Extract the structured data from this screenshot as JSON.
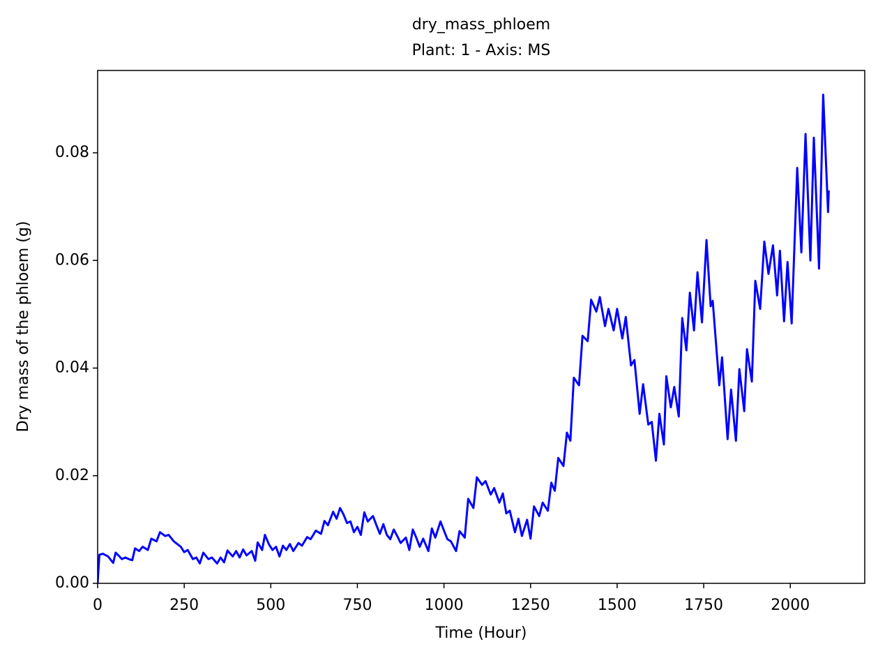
{
  "chart_data": {
    "type": "line",
    "title": "dry_mass_phloem",
    "subtitle": "Plant: 1 - Axis: MS",
    "xlabel": "Time (Hour)",
    "ylabel": "Dry mass of the phloem (g)",
    "xlim": [
      0,
      2215
    ],
    "ylim": [
      0,
      0.0953
    ],
    "xticks": [
      0,
      250,
      500,
      750,
      1000,
      1250,
      1500,
      1750,
      2000
    ],
    "yticks": [
      {
        "value": 0,
        "label": "0.00"
      },
      {
        "value": 0.02,
        "label": "0.02"
      },
      {
        "value": 0.04,
        "label": "0.04"
      },
      {
        "value": 0.06,
        "label": "0.06"
      },
      {
        "value": 0.08,
        "label": "0.08"
      }
    ],
    "grid": false,
    "series": [
      {
        "color": "#0000ff",
        "x": [
          0,
          5,
          15,
          30,
          45,
          52,
          60,
          70,
          80,
          90,
          100,
          108,
          120,
          130,
          145,
          155,
          170,
          180,
          195,
          205,
          220,
          240,
          250,
          260,
          275,
          285,
          295,
          305,
          320,
          330,
          345,
          355,
          365,
          375,
          390,
          400,
          410,
          420,
          430,
          445,
          455,
          462,
          475,
          483,
          495,
          505,
          515,
          525,
          535,
          545,
          555,
          565,
          580,
          590,
          605,
          615,
          630,
          645,
          655,
          665,
          680,
          690,
          700,
          710,
          720,
          730,
          740,
          750,
          760,
          770,
          780,
          795,
          805,
          815,
          825,
          835,
          845,
          855,
          865,
          875,
          890,
          900,
          910,
          920,
          930,
          940,
          955,
          965,
          975,
          990,
          1000,
          1010,
          1020,
          1035,
          1045,
          1060,
          1070,
          1085,
          1095,
          1110,
          1120,
          1135,
          1145,
          1160,
          1170,
          1180,
          1190,
          1205,
          1215,
          1225,
          1240,
          1250,
          1260,
          1275,
          1285,
          1300,
          1310,
          1320,
          1330,
          1345,
          1355,
          1365,
          1375,
          1390,
          1400,
          1415,
          1425,
          1440,
          1450,
          1465,
          1475,
          1490,
          1500,
          1515,
          1525,
          1540,
          1550,
          1565,
          1575,
          1590,
          1600,
          1612,
          1622,
          1635,
          1642,
          1655,
          1665,
          1678,
          1688,
          1700,
          1710,
          1722,
          1732,
          1745,
          1758,
          1770,
          1776,
          1795,
          1803,
          1819,
          1829,
          1843,
          1853,
          1867,
          1875,
          1889,
          1899,
          1913,
          1925,
          1937,
          1950,
          1962,
          1970,
          1982,
          1992,
          2004,
          2020,
          2032,
          2044,
          2058,
          2068,
          2083,
          2095,
          2109,
          2111
        ],
        "values": [
          0,
          0.0053,
          0.0055,
          0.005,
          0.0038,
          0.0057,
          0.0052,
          0.0045,
          0.0048,
          0.0045,
          0.0043,
          0.0065,
          0.006,
          0.0068,
          0.0062,
          0.0083,
          0.0078,
          0.0095,
          0.0088,
          0.009,
          0.0078,
          0.0068,
          0.0058,
          0.0062,
          0.0045,
          0.0048,
          0.0037,
          0.0057,
          0.0045,
          0.0048,
          0.0037,
          0.0048,
          0.0039,
          0.0061,
          0.005,
          0.006,
          0.0048,
          0.0063,
          0.0052,
          0.006,
          0.0042,
          0.0076,
          0.0062,
          0.009,
          0.0072,
          0.0062,
          0.0068,
          0.005,
          0.007,
          0.0062,
          0.0073,
          0.006,
          0.0075,
          0.007,
          0.0086,
          0.0082,
          0.0098,
          0.0092,
          0.0116,
          0.0108,
          0.0133,
          0.012,
          0.014,
          0.0128,
          0.0112,
          0.0115,
          0.0095,
          0.0105,
          0.009,
          0.0132,
          0.0115,
          0.0125,
          0.0108,
          0.0092,
          0.011,
          0.009,
          0.0082,
          0.01,
          0.0088,
          0.0075,
          0.0085,
          0.0062,
          0.01,
          0.0085,
          0.0068,
          0.0083,
          0.006,
          0.0102,
          0.0085,
          0.0115,
          0.0098,
          0.0082,
          0.0078,
          0.006,
          0.0097,
          0.0085,
          0.0157,
          0.014,
          0.0197,
          0.0183,
          0.019,
          0.0165,
          0.0177,
          0.015,
          0.0167,
          0.013,
          0.0135,
          0.0095,
          0.012,
          0.0088,
          0.0118,
          0.0083,
          0.0143,
          0.0125,
          0.015,
          0.0135,
          0.0187,
          0.0172,
          0.0233,
          0.0218,
          0.028,
          0.0265,
          0.0382,
          0.0368,
          0.046,
          0.045,
          0.0527,
          0.0505,
          0.0532,
          0.0478,
          0.051,
          0.047,
          0.051,
          0.0455,
          0.0495,
          0.0405,
          0.0415,
          0.0315,
          0.037,
          0.0295,
          0.03,
          0.0228,
          0.0315,
          0.0258,
          0.0385,
          0.0327,
          0.0365,
          0.031,
          0.0493,
          0.0433,
          0.054,
          0.047,
          0.0578,
          0.0485,
          0.0638,
          0.0515,
          0.0525,
          0.0368,
          0.042,
          0.0268,
          0.036,
          0.0265,
          0.0398,
          0.032,
          0.0435,
          0.0375,
          0.0562,
          0.051,
          0.0635,
          0.0575,
          0.0628,
          0.0535,
          0.0618,
          0.0487,
          0.0597,
          0.0483,
          0.0772,
          0.0615,
          0.0835,
          0.06,
          0.0828,
          0.0585,
          0.0908,
          0.069,
          0.073
        ]
      }
    ]
  }
}
